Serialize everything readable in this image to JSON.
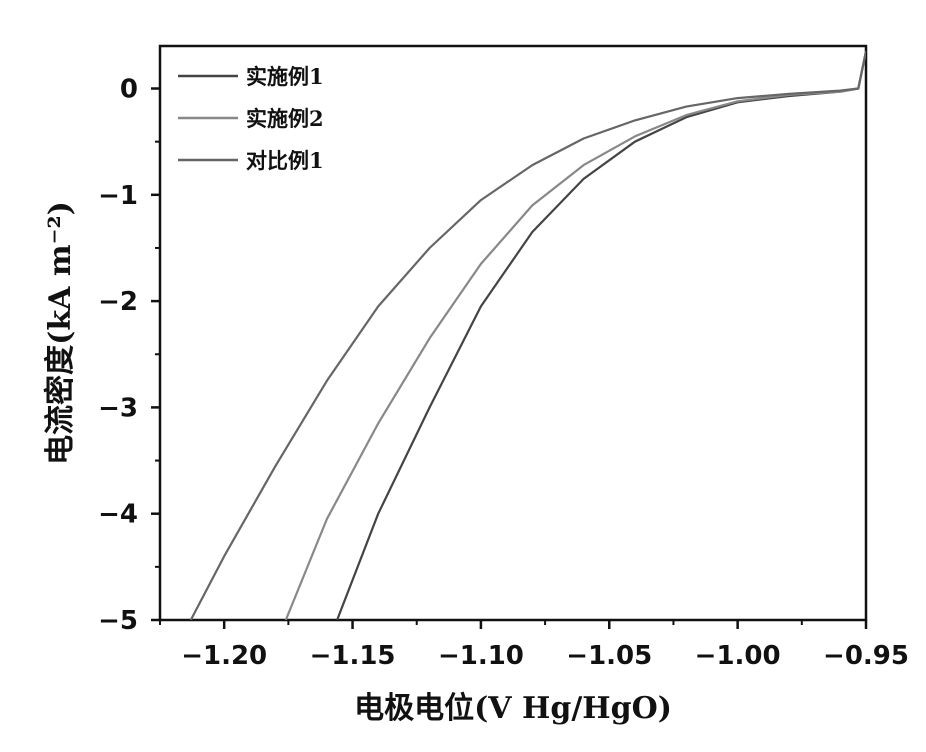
{
  "chart_data": {
    "type": "line",
    "xlabel": "电极电位(V Hg/HgO)",
    "ylabel": "电流密度(kA m⁻²)",
    "xlim": [
      -1.225,
      -0.95
    ],
    "ylim": [
      -5,
      0.4
    ],
    "x_ticks": [
      -1.2,
      -1.15,
      -1.1,
      -1.05,
      -1.0,
      -0.95
    ],
    "x_tick_labels": [
      "−1.20",
      "−1.15",
      "−1.10",
      "−1.05",
      "−1.00",
      "−0.95"
    ],
    "y_ticks": [
      0,
      -1,
      -2,
      -3,
      -4,
      -5
    ],
    "y_tick_labels": [
      "0",
      "−1",
      "−2",
      "−3",
      "−4",
      "−5"
    ],
    "grid": false,
    "legend_position": "top-left",
    "series": [
      {
        "name": "实施例1",
        "color": "#444444",
        "points": [
          [
            -1.156,
            -5.0
          ],
          [
            -1.14,
            -4.0
          ],
          [
            -1.12,
            -3.0
          ],
          [
            -1.1,
            -2.05
          ],
          [
            -1.08,
            -1.35
          ],
          [
            -1.06,
            -0.85
          ],
          [
            -1.04,
            -0.5
          ],
          [
            -1.02,
            -0.27
          ],
          [
            -1.0,
            -0.13
          ],
          [
            -0.98,
            -0.07
          ],
          [
            -0.96,
            -0.03
          ],
          [
            -0.953,
            0.0
          ],
          [
            -0.95,
            0.35
          ]
        ]
      },
      {
        "name": "实施例2",
        "color": "#888888",
        "points": [
          [
            -1.176,
            -5.0
          ],
          [
            -1.16,
            -4.05
          ],
          [
            -1.14,
            -3.15
          ],
          [
            -1.12,
            -2.35
          ],
          [
            -1.1,
            -1.65
          ],
          [
            -1.08,
            -1.1
          ],
          [
            -1.06,
            -0.72
          ],
          [
            -1.04,
            -0.45
          ],
          [
            -1.02,
            -0.25
          ],
          [
            -1.0,
            -0.12
          ],
          [
            -0.98,
            -0.06
          ],
          [
            -0.96,
            -0.03
          ],
          [
            -0.953,
            0.0
          ],
          [
            -0.95,
            0.35
          ]
        ]
      },
      {
        "name": "对比例1",
        "color": "#666666",
        "points": [
          [
            -1.213,
            -5.0
          ],
          [
            -1.2,
            -4.4
          ],
          [
            -1.18,
            -3.55
          ],
          [
            -1.16,
            -2.75
          ],
          [
            -1.14,
            -2.05
          ],
          [
            -1.12,
            -1.5
          ],
          [
            -1.1,
            -1.05
          ],
          [
            -1.08,
            -0.72
          ],
          [
            -1.06,
            -0.47
          ],
          [
            -1.04,
            -0.3
          ],
          [
            -1.02,
            -0.17
          ],
          [
            -1.0,
            -0.09
          ],
          [
            -0.98,
            -0.05
          ],
          [
            -0.96,
            -0.02
          ],
          [
            -0.953,
            0.0
          ],
          [
            -0.95,
            0.35
          ]
        ]
      }
    ]
  }
}
